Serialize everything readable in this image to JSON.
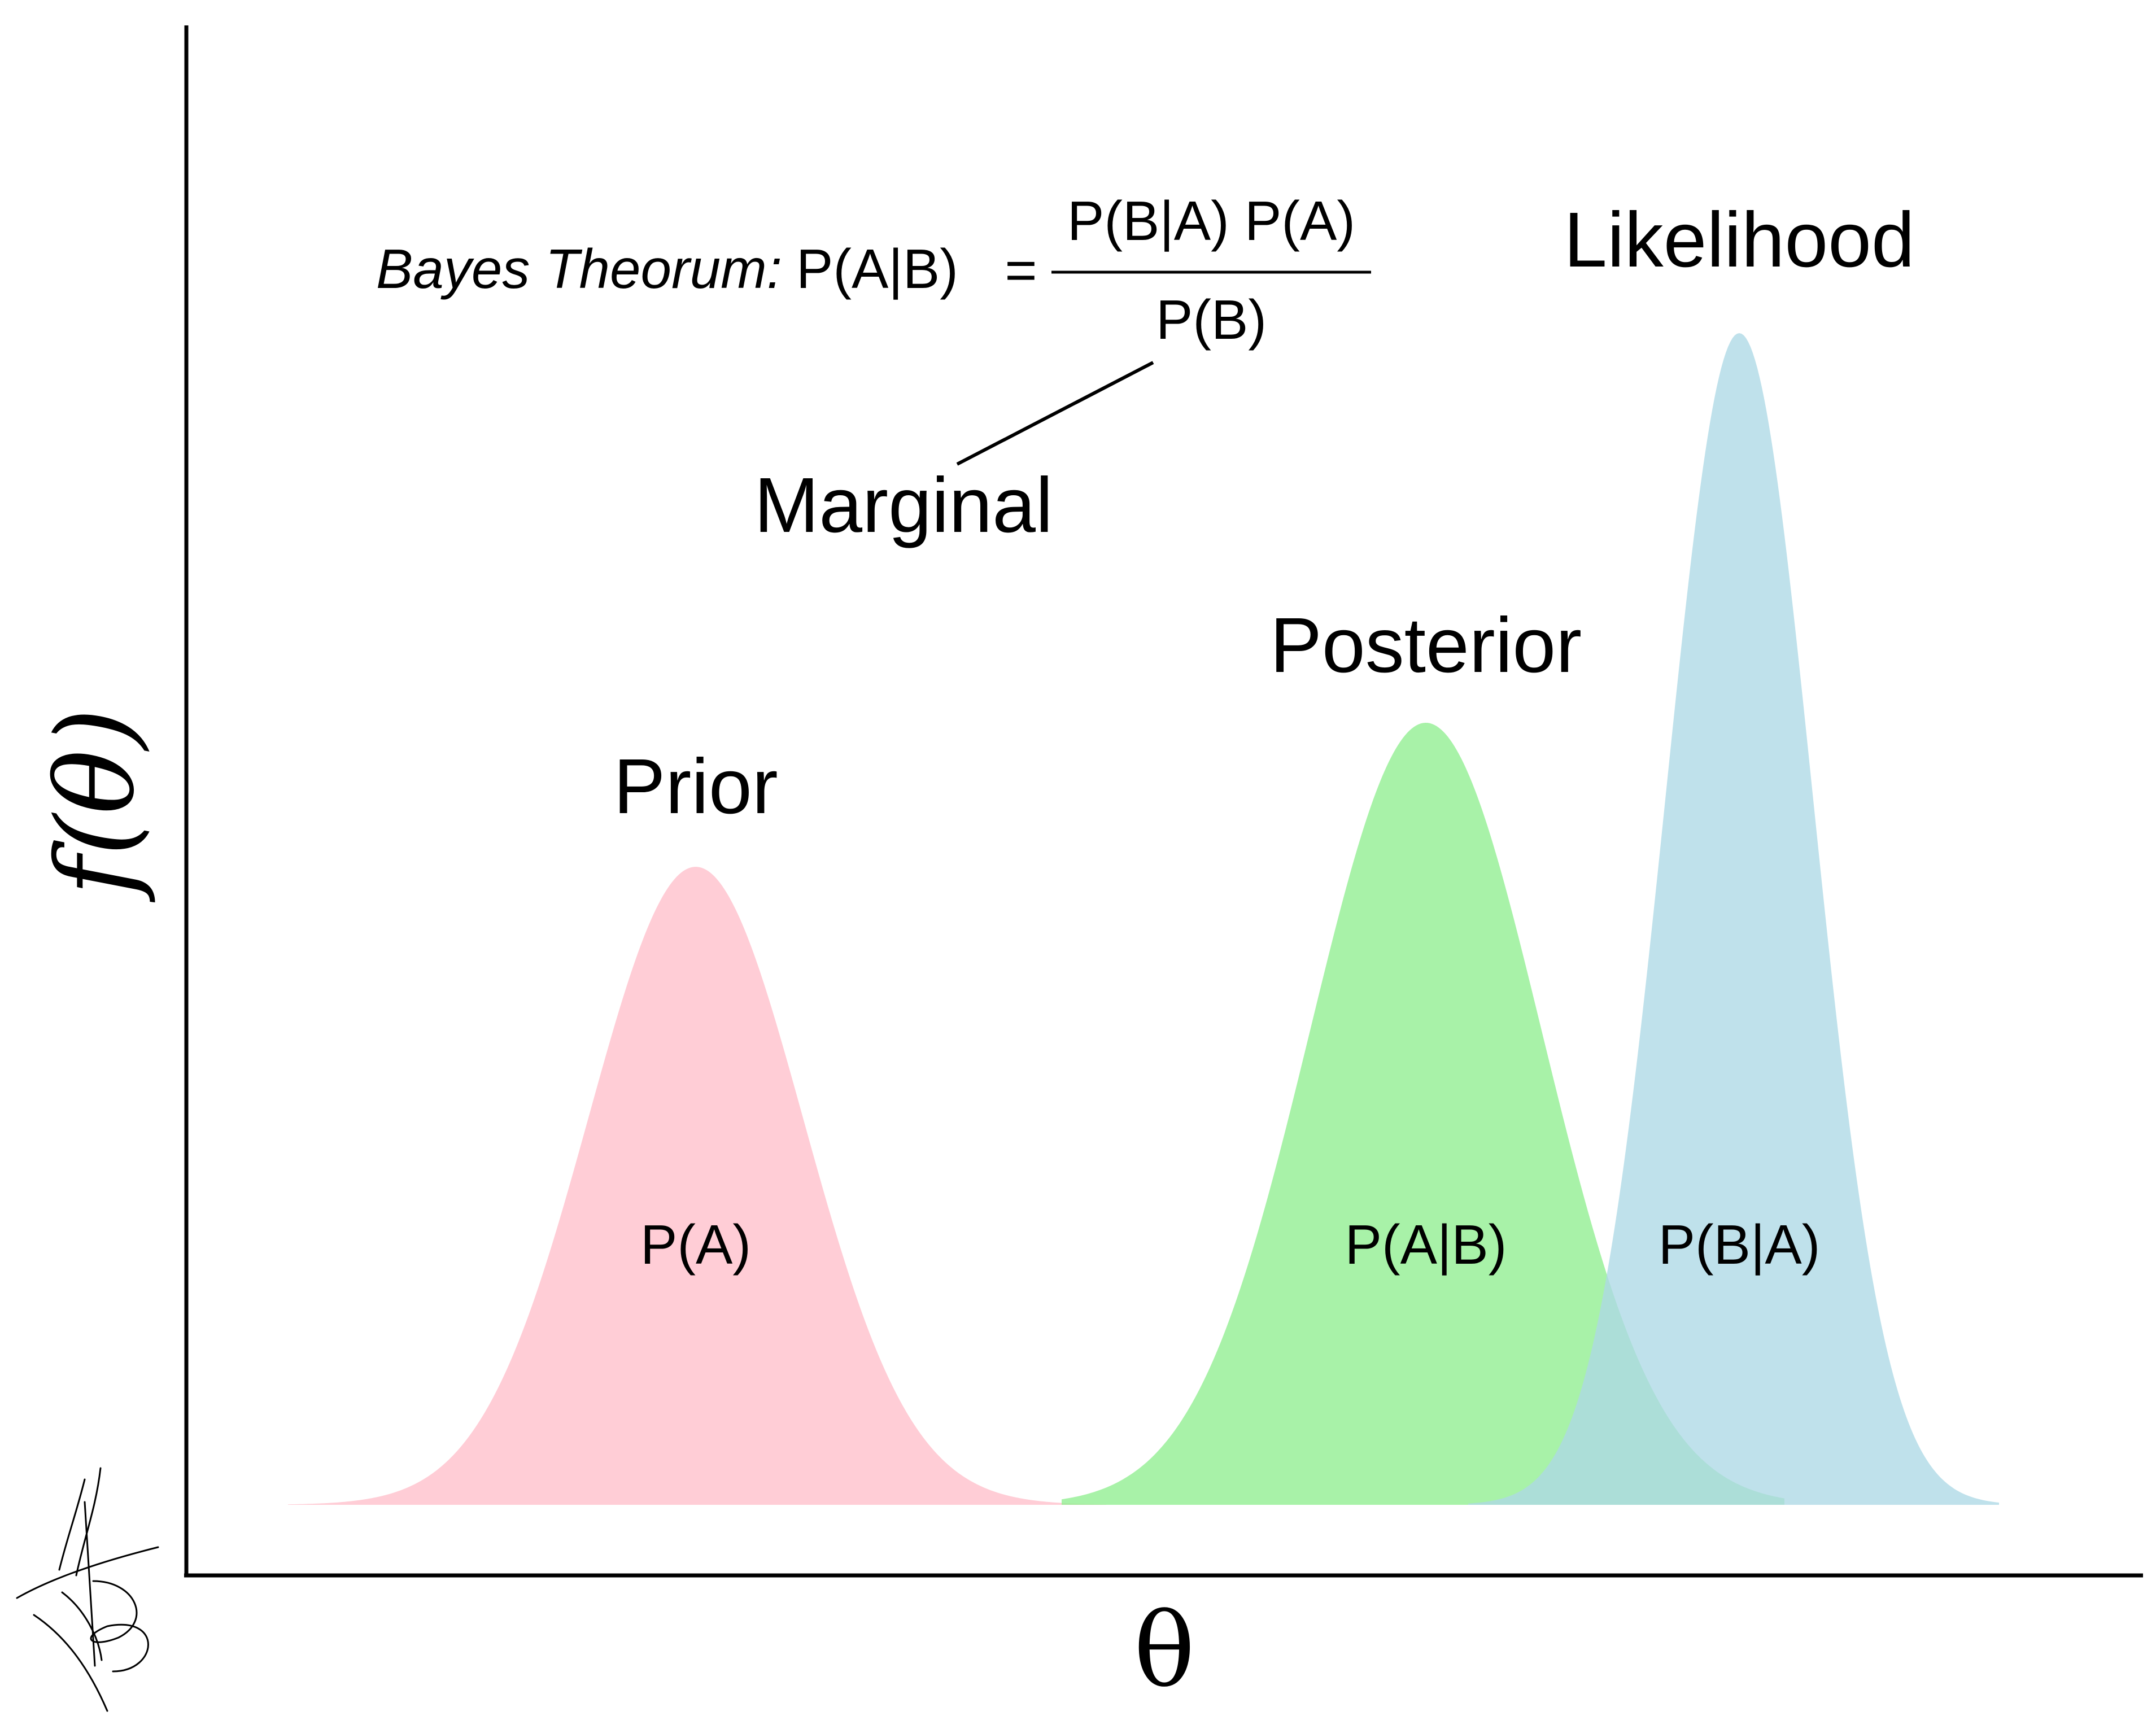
{
  "axes": {
    "x_label": "θ",
    "y_label": "f(θ)"
  },
  "formula": {
    "name": "Bayes Theorum:",
    "lhs": "P(A|B)",
    "equals": "=",
    "numerator": "P(B|A) P(A)",
    "denominator": "P(B)"
  },
  "annotation": {
    "marginal_label": "Marginal"
  },
  "curves": {
    "prior": {
      "title": "Prior",
      "inner_label": "P(A)",
      "color": "#ffcdd6"
    },
    "posterior": {
      "title": "Posterior",
      "inner_label": "P(A|B)",
      "color": "#90ee90"
    },
    "likelihood": {
      "title": "Likelihood",
      "inner_label": "P(B|A)",
      "color": "#add8e6"
    }
  },
  "signature": {
    "description": "handwritten initials"
  }
}
